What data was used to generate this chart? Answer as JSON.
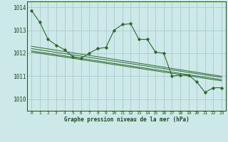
{
  "title": "Graphe pression niveau de la mer (hPa)",
  "background_color": "#cce8e8",
  "grid_color": "#aacccc",
  "line_color": "#2d6a2d",
  "text_color": "#1a4a1a",
  "xlim": [
    -0.5,
    23.5
  ],
  "ylim": [
    1009.5,
    1014.25
  ],
  "yticks": [
    1010,
    1011,
    1012,
    1013,
    1014
  ],
  "xtick_labels": [
    "0",
    "1",
    "2",
    "3",
    "4",
    "5",
    "6",
    "7",
    "8",
    "9",
    "10",
    "11",
    "12",
    "13",
    "14",
    "15",
    "16",
    "17",
    "18",
    "19",
    "20",
    "21",
    "22",
    "23"
  ],
  "main_series": [
    1013.85,
    1013.35,
    1012.6,
    1012.35,
    1012.15,
    1011.85,
    1011.78,
    1012.0,
    1012.2,
    1012.25,
    1013.0,
    1013.25,
    1013.28,
    1012.6,
    1012.6,
    1012.05,
    1012.0,
    1011.0,
    1011.05,
    1011.05,
    1010.75,
    1010.3,
    1010.5,
    1010.5
  ],
  "trend_lines": [
    {
      "x": [
        0,
        23
      ],
      "y": [
        1012.3,
        1011.0
      ]
    },
    {
      "x": [
        0,
        23
      ],
      "y": [
        1012.2,
        1010.95
      ]
    },
    {
      "x": [
        0,
        23
      ],
      "y": [
        1012.1,
        1010.85
      ]
    },
    {
      "x": [
        0,
        23
      ],
      "y": [
        1012.05,
        1010.8
      ]
    }
  ]
}
